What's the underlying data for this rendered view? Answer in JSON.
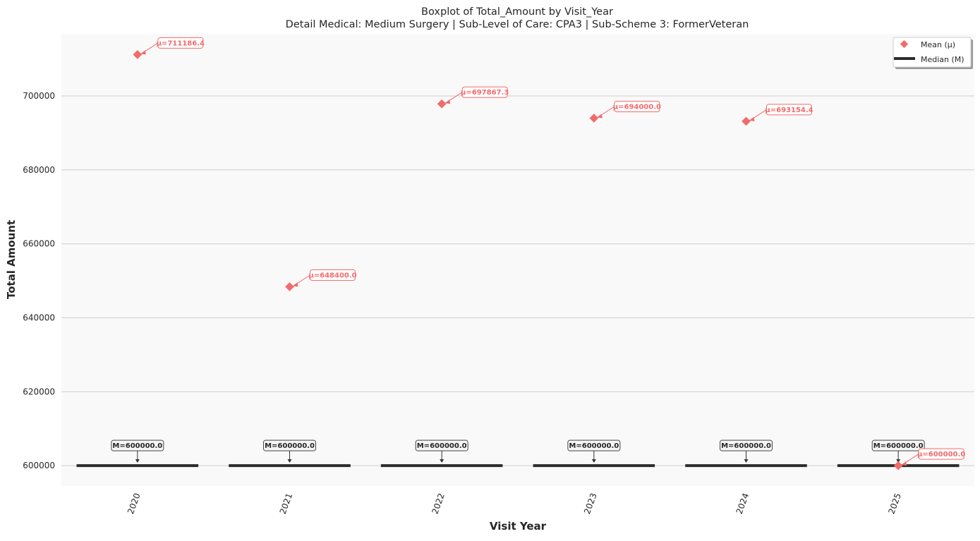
{
  "title_line1": "Boxplot of Total_Amount by Visit_Year",
  "title_line2": "Detail Medical: Medium Surgery | Sub-Level of Care: CPA3 | Sub-Scheme 3: FormerVeteran",
  "colors": {
    "background": "#f9f9f9",
    "mean": "#f26b6b",
    "median": "#2b2b2b",
    "grid": "#cfcfcf"
  },
  "chart_data": {
    "type": "box",
    "title": "Boxplot of Total_Amount by Visit_Year",
    "subtitle": "Detail Medical: Medium Surgery | Sub-Level of Care: CPA3 | Sub-Scheme 3: FormerVeteran",
    "xlabel": "Visit Year",
    "ylabel": "Total Amount",
    "categories": [
      "2020",
      "2021",
      "2022",
      "2023",
      "2024",
      "2025"
    ],
    "series": [
      {
        "name": "Mean (μ)",
        "values": [
          711186.4,
          648400.0,
          697867.3,
          694000.0,
          693154.4,
          600000.0
        ],
        "labels": [
          "μ=711186.4",
          "μ=648400.0",
          "μ=697867.3",
          "μ=694000.0",
          "μ=693154.4",
          "μ=600000.0"
        ]
      },
      {
        "name": "Median (M)",
        "values": [
          600000.0,
          600000.0,
          600000.0,
          600000.0,
          600000.0,
          600000.0
        ],
        "labels": [
          "M=600000.0",
          "M=600000.0",
          "M=600000.0",
          "M=600000.0",
          "M=600000.0",
          "M=600000.0"
        ]
      }
    ],
    "ylim": [
      594500,
      716800
    ],
    "yticks": [
      600000,
      620000,
      640000,
      660000,
      680000,
      700000
    ],
    "ytick_labels": [
      "600000",
      "620000",
      "640000",
      "660000",
      "680000",
      "700000"
    ],
    "xtick_rotation": -70,
    "grid": "horizontal",
    "legend": {
      "position": "top-right",
      "entries": [
        "Mean (μ)",
        "Median (M)"
      ]
    }
  }
}
